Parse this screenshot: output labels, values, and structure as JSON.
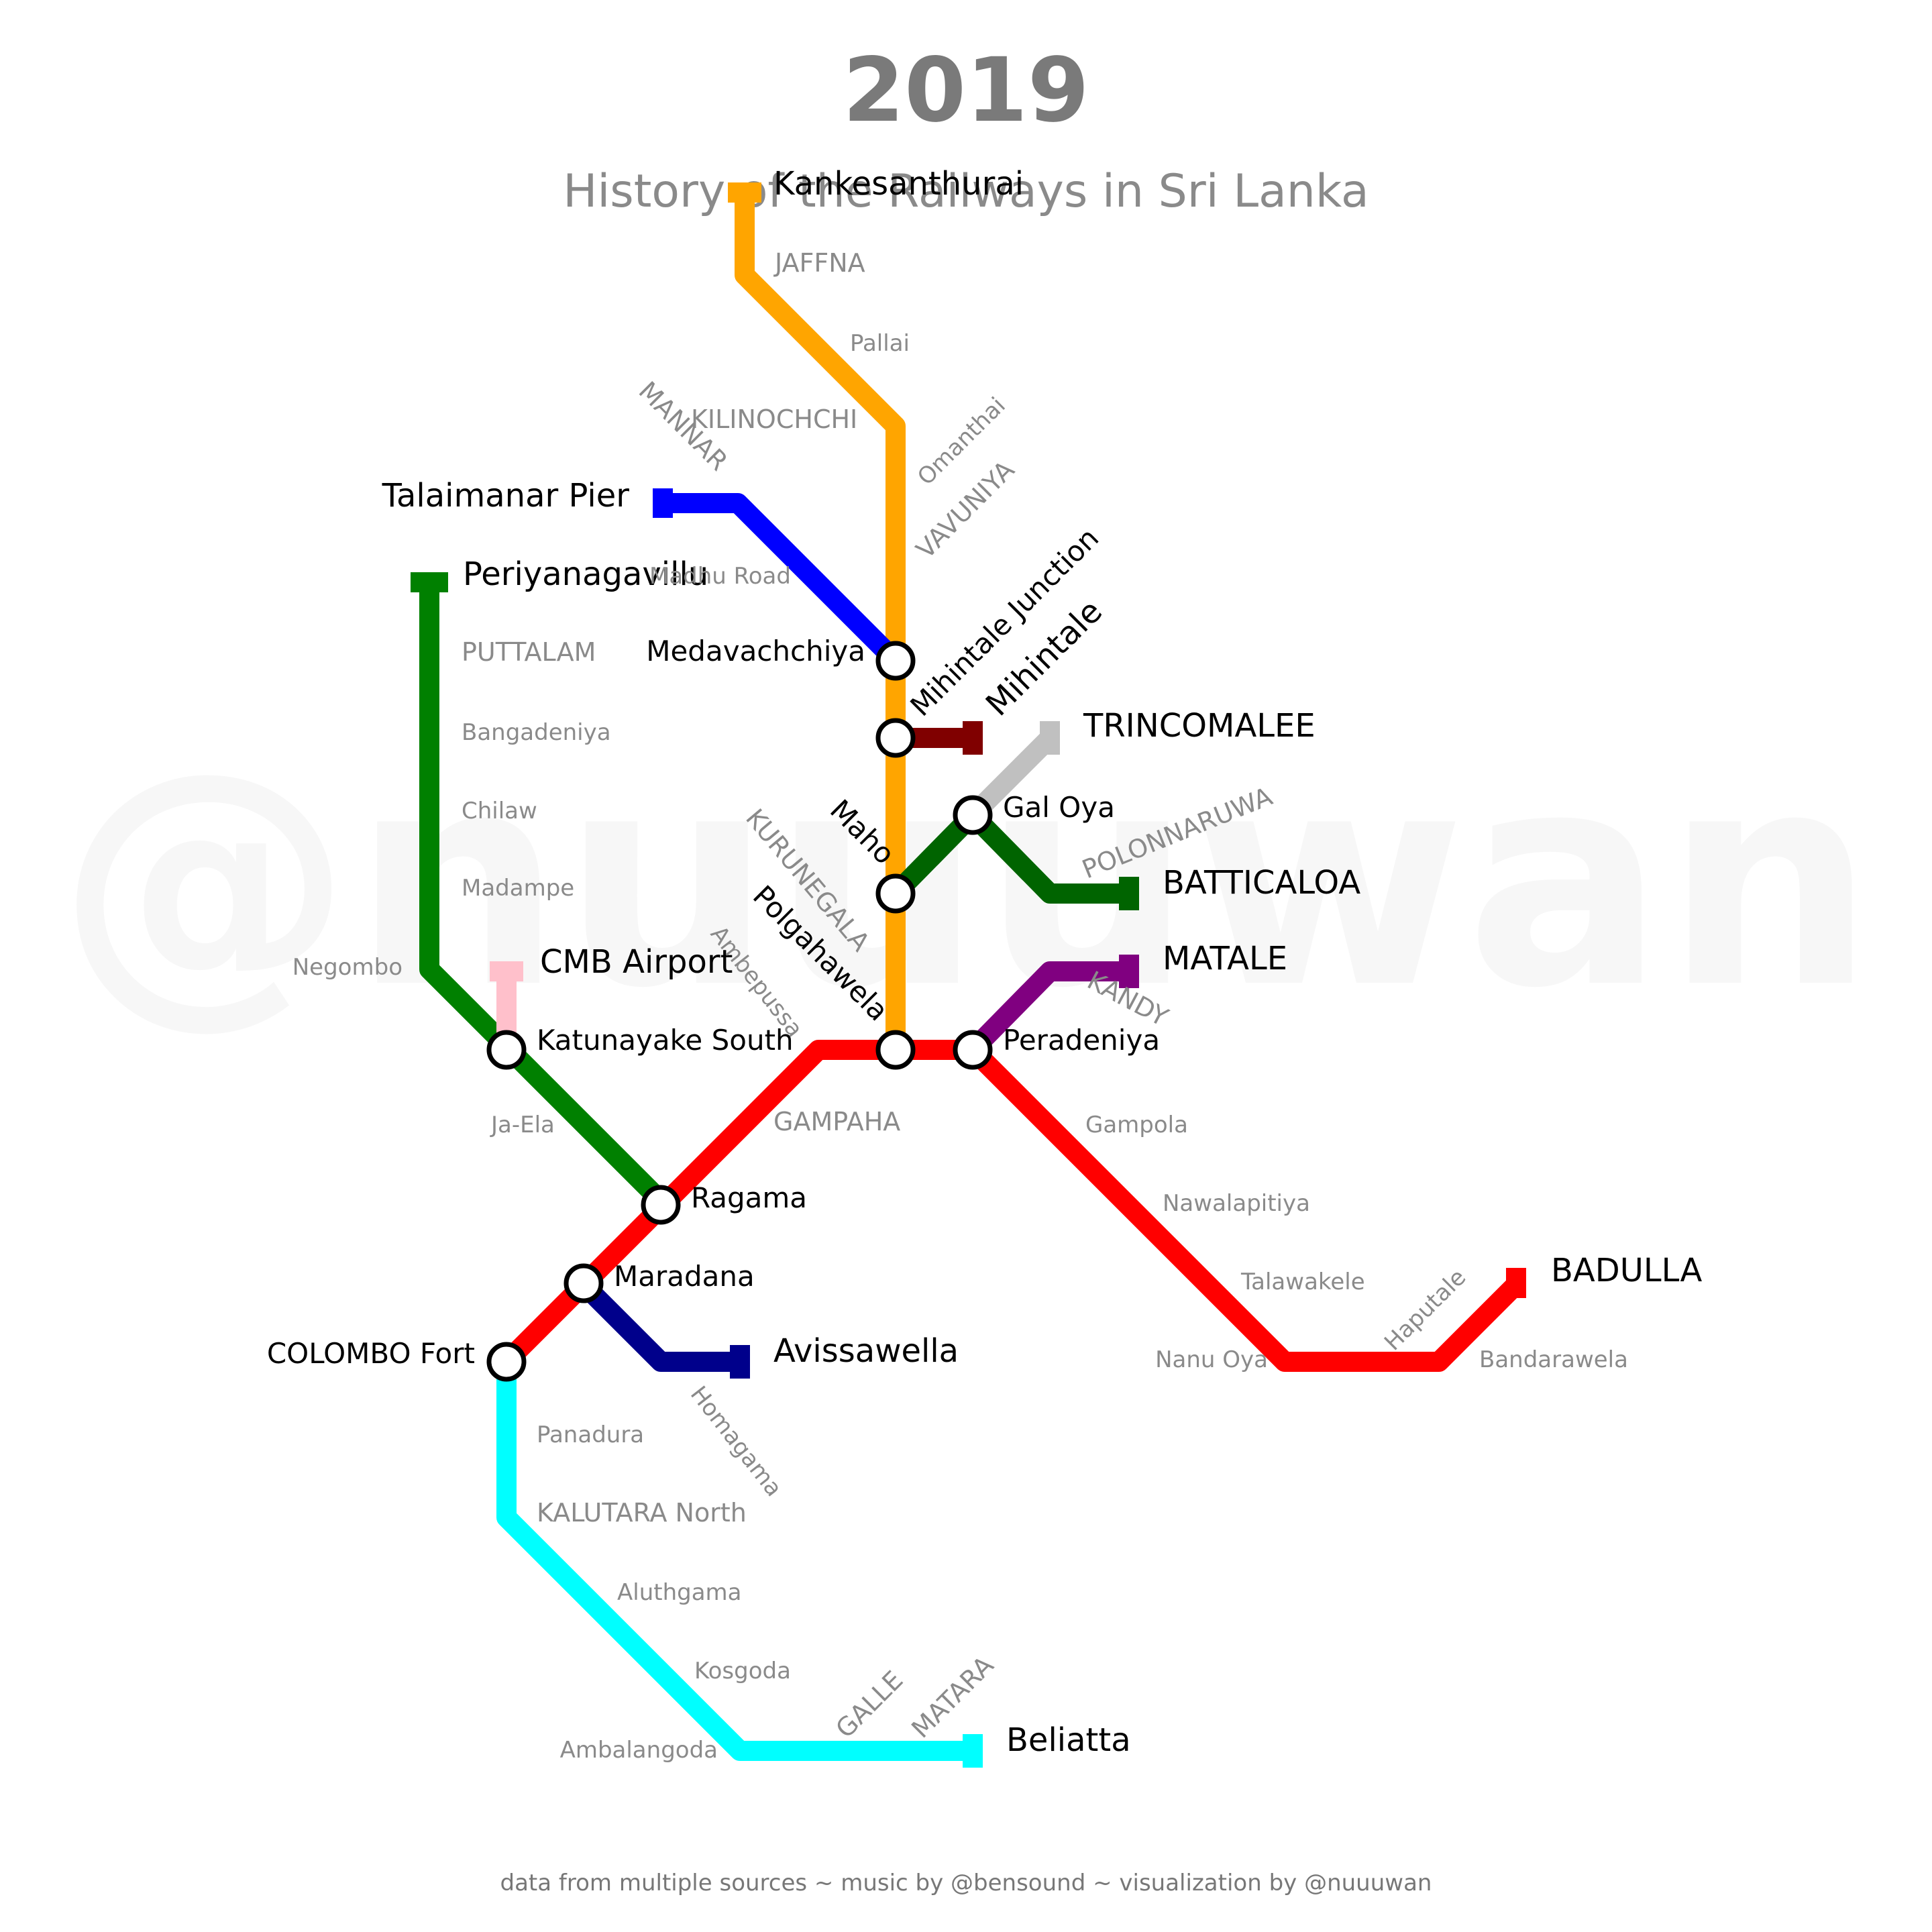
{
  "title": "2019",
  "subtitle": "History of the Railways in Sri Lanka",
  "watermark": "@nuuuwan",
  "credit": "data from multiple sources ~ music by @bensound ~ visualization by @nuuuwan",
  "colors": {
    "northern": "#ffa500",
    "mannar": "#0000ff",
    "puttalam": "#008000",
    "airport": "#ffc0cb",
    "main": "#ff0000",
    "kelani_valley": "#00008b",
    "coastal": "#00ffff",
    "trincomalee": "#c0c0c0",
    "batticaloa": "#006400",
    "matale": "#800080",
    "mihintale": "#800000"
  },
  "lines": [
    {
      "id": "northern",
      "color_key": "northern"
    },
    {
      "id": "mannar",
      "color_key": "mannar"
    },
    {
      "id": "puttalam",
      "color_key": "puttalam"
    },
    {
      "id": "airport",
      "color_key": "airport"
    },
    {
      "id": "main",
      "color_key": "main"
    },
    {
      "id": "kelani-valley",
      "color_key": "kelani_valley"
    },
    {
      "id": "coastal",
      "color_key": "coastal"
    },
    {
      "id": "trincomalee",
      "color_key": "trincomalee"
    },
    {
      "id": "batticaloa",
      "color_key": "batticaloa"
    },
    {
      "id": "matale",
      "color_key": "matale"
    },
    {
      "id": "mihintale",
      "color_key": "mihintale"
    }
  ],
  "stations": {
    "kankesanthurai": "Kankesanthurai",
    "jaffna": "JAFFNA",
    "pallai": "Pallai",
    "kilinochchi": "KILINOCHCHI",
    "omanthai": "Omanthai",
    "vavuniya": "VAVUNIYA",
    "mannar": "MANNAR",
    "talaimanar_pier": "Talaimanar Pier",
    "madhu_road": "Madhu Road",
    "periyanagavillu": "Periyanagavillu",
    "puttalam": "PUTTALAM",
    "bangadeniya": "Bangadeniya",
    "chilaw": "Chilaw",
    "madampe": "Madampe",
    "negombo": "Negombo",
    "medavachchiya": "Medavachchiya",
    "mihintale_junction": "Mihintale Junction",
    "mihintale": "Mihintale",
    "trincomalee": "TRINCOMALEE",
    "gal_oya": "Gal Oya",
    "polonnaruwa": "POLONNARUWA",
    "batticaloa": "BATTICALOA",
    "maho": "Maho",
    "kurunegala": "KURUNEGALA",
    "polgahawela": "Polgahawela",
    "ambepussa": "Ambepussa",
    "matale": "MATALE",
    "kandy": "KANDY",
    "peradeniya": "Peradeniya",
    "cmb_airport": "CMB Airport",
    "katunayake_south": "Katunayake South",
    "ja_ela": "Ja-Ela",
    "gampaha": "GAMPAHA",
    "ragama": "Ragama",
    "maradana": "Maradana",
    "avissawella": "Avissawella",
    "homagama": "Homagama",
    "colombo_fort": "COLOMBO Fort",
    "gampola": "Gampola",
    "nawalapitiya": "Nawalapitiya",
    "talawakele": "Talawakele",
    "haputale": "Haputale",
    "badulla": "BADULLA",
    "nanu_oya": "Nanu Oya",
    "bandarawela": "Bandarawela",
    "panadura": "Panadura",
    "kalutara_north": "KALUTARA North",
    "aluthgama": "Aluthgama",
    "kosgoda": "Kosgoda",
    "ambalangoda": "Ambalangoda",
    "galle": "GALLE",
    "matara": "MATARA",
    "beliatta": "Beliatta"
  }
}
